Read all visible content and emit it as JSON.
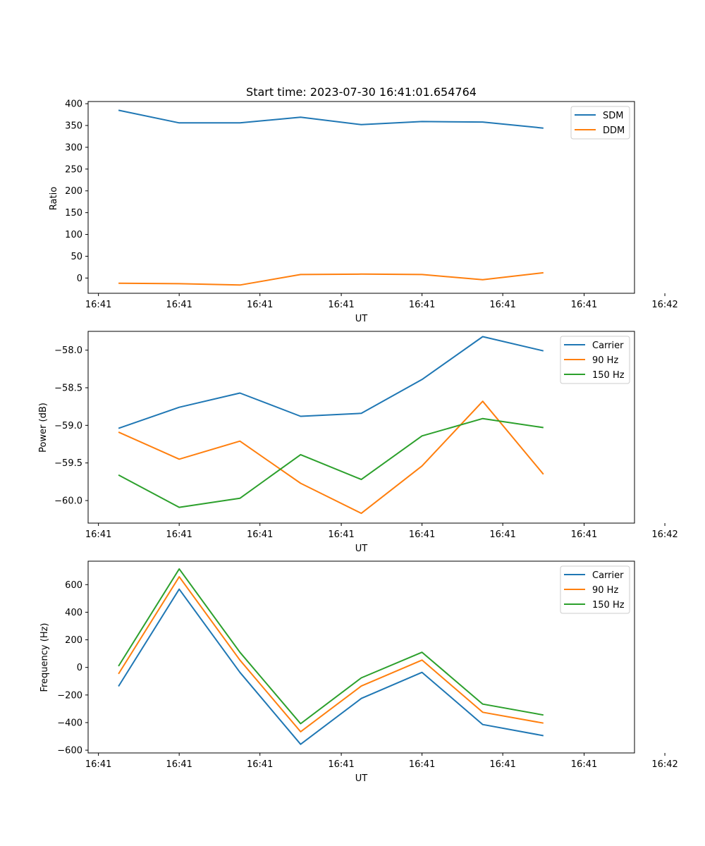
{
  "chart_data": [
    {
      "type": "line",
      "title": "Start time: 2023-07-30 16:41:01.654764",
      "xlabel": "UT",
      "ylabel": "Ratio",
      "x_index": [
        0,
        1,
        2,
        3,
        4,
        5,
        6,
        7
      ],
      "xlim": [
        -0.5,
        8.5
      ],
      "x_ticks": [
        -0.33,
        1.0,
        2.33,
        3.67,
        5.0,
        6.33,
        7.67,
        9.0
      ],
      "x_tick_labels": [
        "16:41",
        "16:41",
        "16:41",
        "16:41",
        "16:41",
        "16:41",
        "16:41",
        "16:42"
      ],
      "ylim": [
        -35,
        405
      ],
      "y_ticks": [
        0,
        50,
        100,
        150,
        200,
        250,
        300,
        350,
        400
      ],
      "y_tick_labels": [
        "0",
        "50",
        "100",
        "150",
        "200",
        "250",
        "300",
        "350",
        "400"
      ],
      "legend_position": "top-right",
      "series": [
        {
          "name": "SDM",
          "color": "#1f77b4",
          "values": [
            385,
            356,
            356,
            369,
            352,
            359,
            358,
            344
          ]
        },
        {
          "name": "DDM",
          "color": "#ff7f0e",
          "values": [
            -12,
            -13,
            -16,
            8,
            9,
            8,
            -4,
            12
          ]
        }
      ]
    },
    {
      "type": "line",
      "title": "",
      "xlabel": "UT",
      "ylabel": "Power (dB)",
      "x_index": [
        0,
        1,
        2,
        3,
        4,
        5,
        6,
        7
      ],
      "xlim": [
        -0.5,
        8.5
      ],
      "x_ticks": [
        -0.33,
        1.0,
        2.33,
        3.67,
        5.0,
        6.33,
        7.67,
        9.0
      ],
      "x_tick_labels": [
        "16:41",
        "16:41",
        "16:41",
        "16:41",
        "16:41",
        "16:41",
        "16:41",
        "16:42"
      ],
      "ylim": [
        -60.3,
        -57.75
      ],
      "y_ticks": [
        -60.0,
        -59.5,
        -59.0,
        -58.5,
        -58.0
      ],
      "y_tick_labels": [
        "−60.0",
        "−59.5",
        "−59.0",
        "−58.5",
        "−58.0"
      ],
      "legend_position": "top-right",
      "series": [
        {
          "name": "Carrier",
          "color": "#1f77b4",
          "values": [
            -59.04,
            -58.76,
            -58.57,
            -58.88,
            -58.84,
            -58.39,
            -57.82,
            -58.01
          ]
        },
        {
          "name": "90 Hz",
          "color": "#ff7f0e",
          "values": [
            -59.09,
            -59.45,
            -59.21,
            -59.77,
            -60.17,
            -59.54,
            -58.68,
            -59.65
          ]
        },
        {
          "name": "150 Hz",
          "color": "#2ca02c",
          "values": [
            -59.66,
            -60.09,
            -59.97,
            -59.39,
            -59.72,
            -59.14,
            -58.91,
            -59.03
          ]
        }
      ]
    },
    {
      "type": "line",
      "title": "",
      "xlabel": "UT",
      "ylabel": "Frequency (Hz)",
      "x_index": [
        0,
        1,
        2,
        3,
        4,
        5,
        6,
        7
      ],
      "xlim": [
        -0.5,
        8.5
      ],
      "x_ticks": [
        -0.33,
        1.0,
        2.33,
        3.67,
        5.0,
        6.33,
        7.67,
        9.0
      ],
      "x_tick_labels": [
        "16:41",
        "16:41",
        "16:41",
        "16:41",
        "16:41",
        "16:41",
        "16:41",
        "16:42"
      ],
      "ylim": [
        -620,
        770
      ],
      "y_ticks": [
        -600,
        -400,
        -200,
        0,
        200,
        400,
        600
      ],
      "y_tick_labels": [
        "−600",
        "−400",
        "−200",
        "0",
        "200",
        "400",
        "600"
      ],
      "legend_position": "top-right",
      "series": [
        {
          "name": "Carrier",
          "color": "#1f77b4",
          "values": [
            -137,
            567,
            -36,
            -557,
            -225,
            -36,
            -414,
            -495
          ]
        },
        {
          "name": "90 Hz",
          "color": "#ff7f0e",
          "values": [
            -47,
            657,
            53,
            -466,
            -135,
            53,
            -325,
            -404
          ]
        },
        {
          "name": "150 Hz",
          "color": "#2ca02c",
          "values": [
            9,
            714,
            110,
            -408,
            -76,
            110,
            -266,
            -345
          ]
        }
      ]
    }
  ]
}
